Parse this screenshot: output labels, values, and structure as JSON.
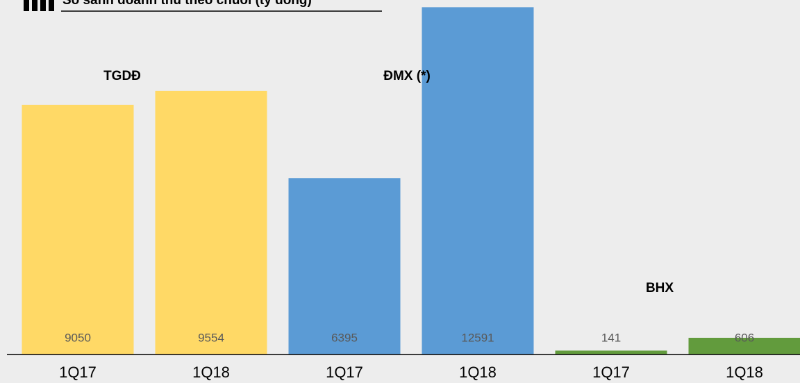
{
  "chart_data": {
    "type": "bar",
    "title": "So sánh doanh thu theo chuỗi (tỷ đồng)",
    "ylim": [
      0,
      12600
    ],
    "groups": [
      {
        "name": "TGDĐ",
        "color": "#ffd966",
        "categories": [
          "1Q17",
          "1Q18"
        ],
        "values": [
          9050,
          9554
        ]
      },
      {
        "name": "ĐMX (*)",
        "color": "#5b9bd5",
        "categories": [
          "1Q17",
          "1Q18"
        ],
        "values": [
          6395,
          12591
        ]
      },
      {
        "name": "BHX",
        "color": "#629b3d",
        "categories": [
          "1Q17",
          "1Q18"
        ],
        "values": [
          141,
          606
        ]
      }
    ]
  }
}
